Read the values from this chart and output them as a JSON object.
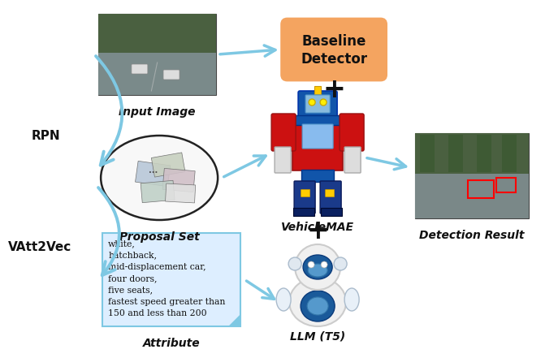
{
  "bg_color": "#ffffff",
  "rpn_label": "RPN",
  "vatt2vec_label": "VAtt2Vec",
  "input_image_label": "Input Image",
  "proposal_set_label": "Proposal Set",
  "baseline_detector_label": "Baseline\nDetector",
  "vehiclemae_label": "VehicleMAE",
  "detection_result_label": "Detection Result",
  "llm_label": "LLM (T5)",
  "attribute_label": "Attribute",
  "attribute_text": "white,\nhatchback,\nmid-displacement car,\nfour doors,\nfive seats,\nfastest speed greater than\n150 and less than 200",
  "arrow_color": "#7ec8e3",
  "baseline_box_color": "#f4a460",
  "attribute_box_color": "#ddeeff",
  "attribute_box_edge": "#7ec8e3"
}
